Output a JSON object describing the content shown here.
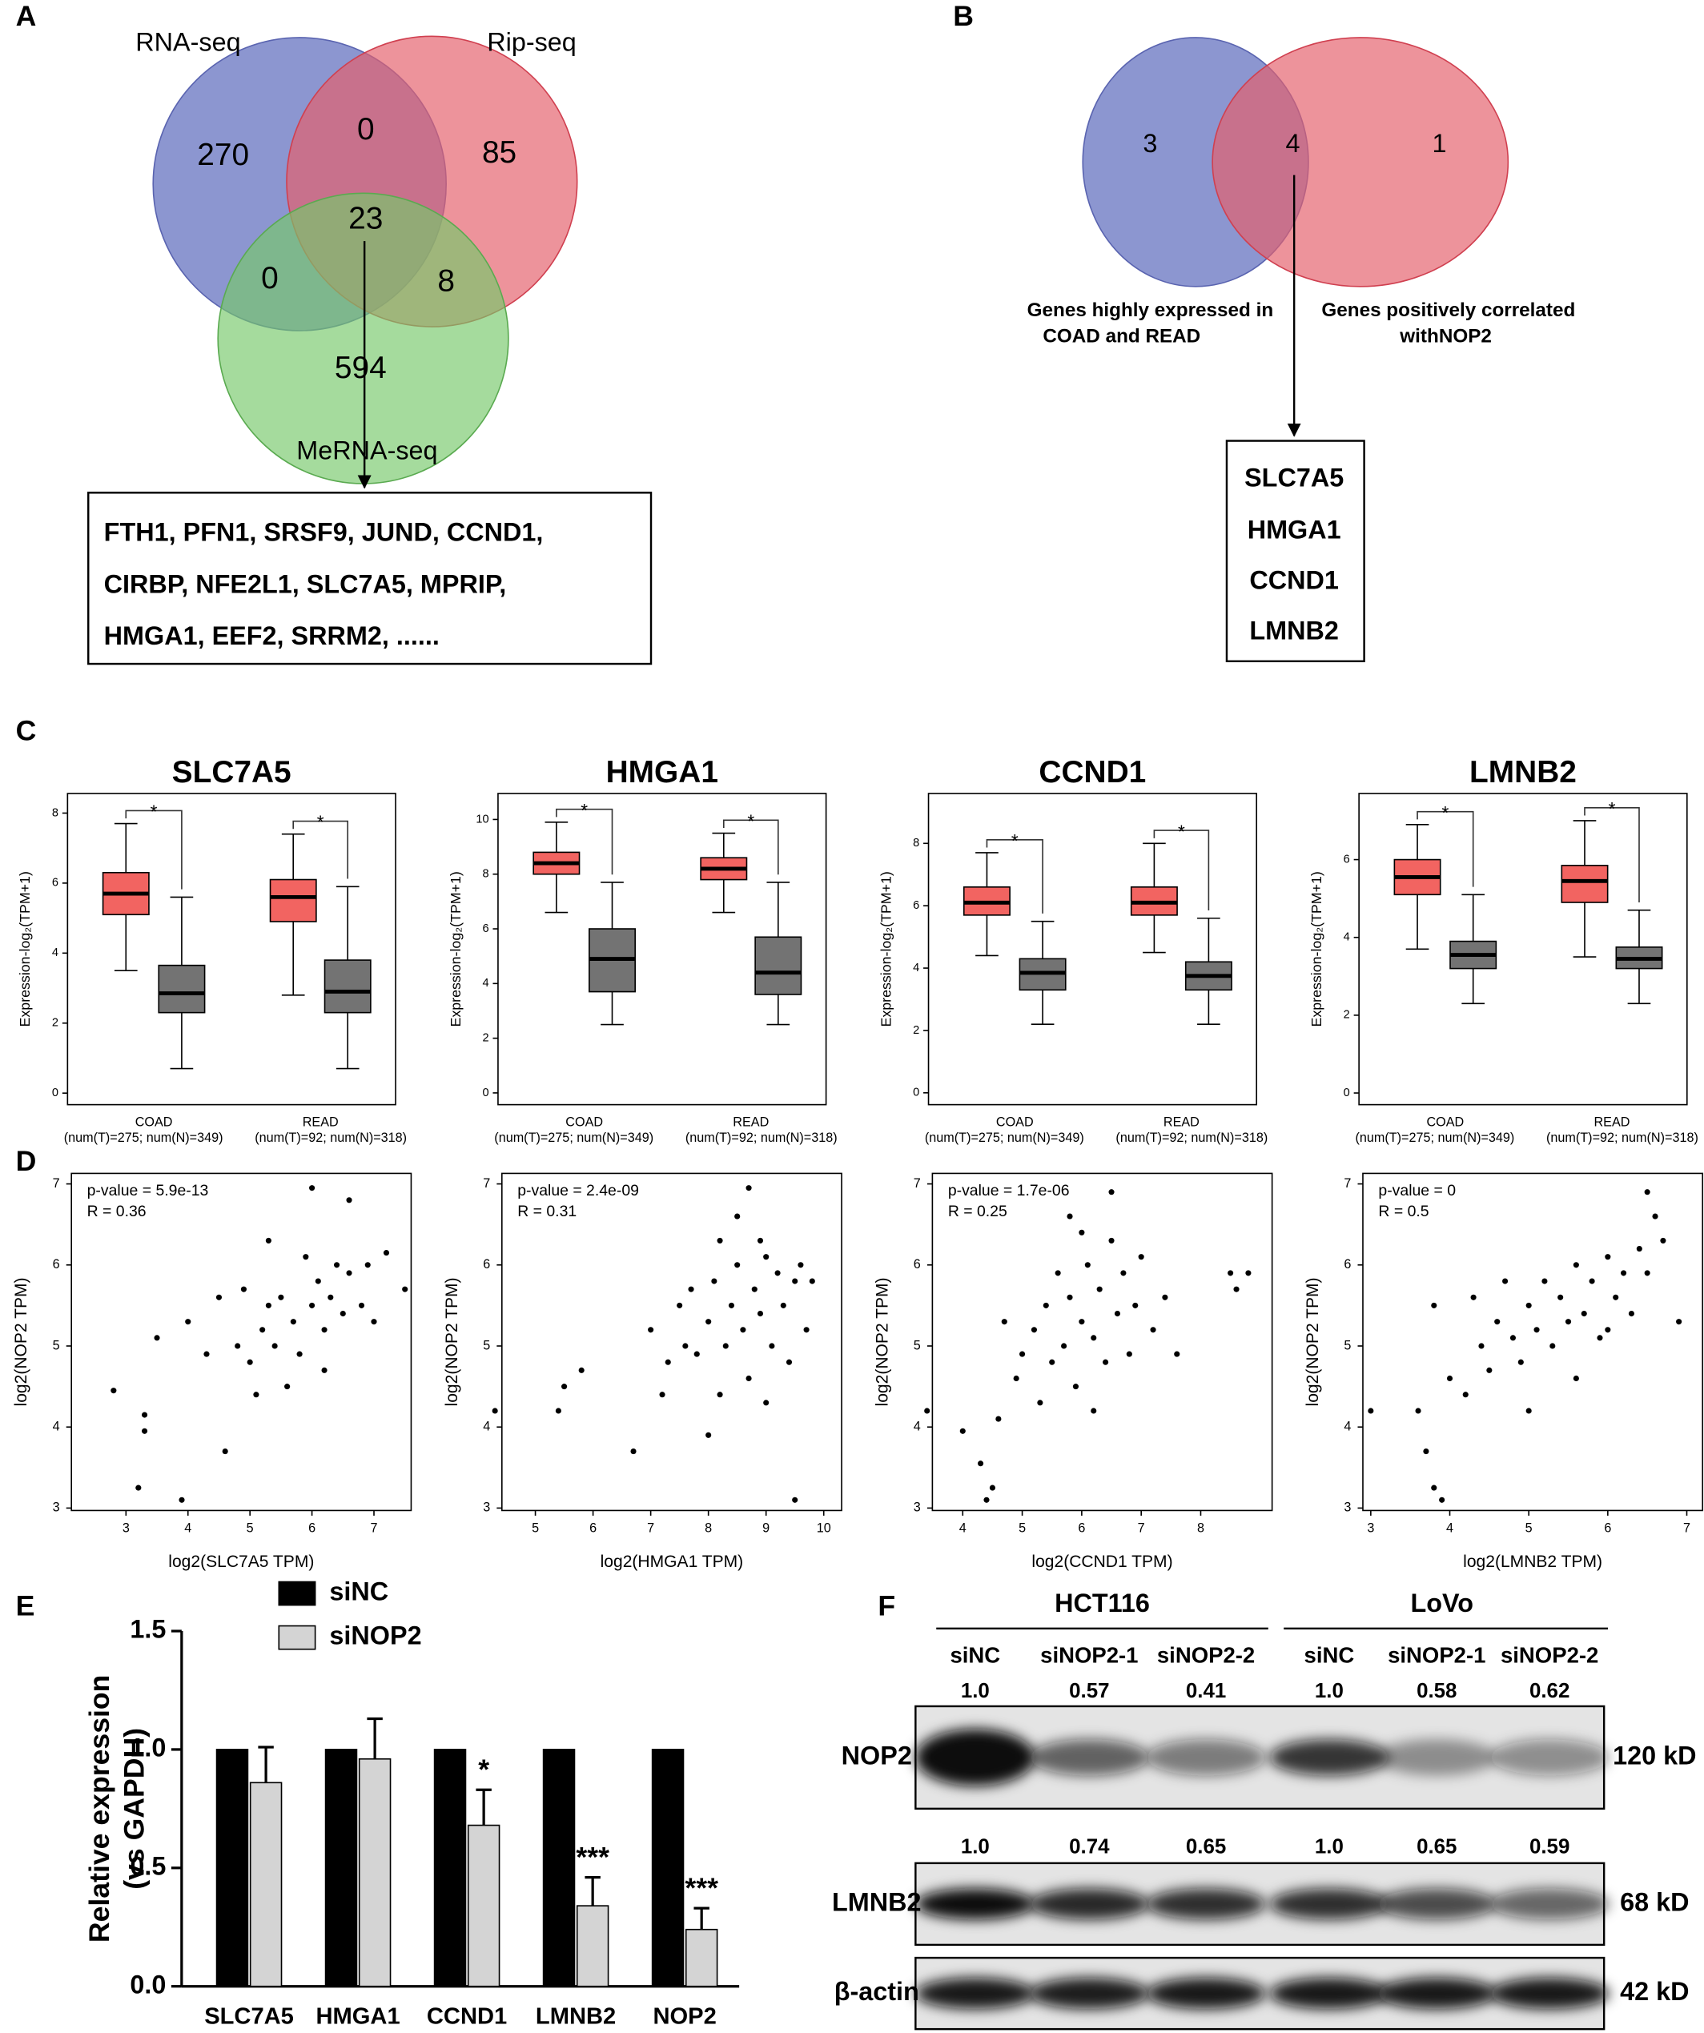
{
  "panel_labels": [
    "A",
    "B",
    "C",
    "D",
    "E",
    "F"
  ],
  "venn_a": {
    "sets": [
      "RNA-seq",
      "Rip-seq",
      "MeRNA-seq"
    ],
    "regions": [
      270,
      0,
      85,
      23,
      0,
      8,
      594
    ],
    "genes": [
      "FTH1, PFN1, SRSF9, JUND, CCND1,",
      "CIRBP, NFE2L1, SLC7A5, MPRIP,",
      "HMGA1, EEF2, SRRM2, ......"
    ]
  },
  "venn_b": {
    "regions": [
      3,
      4,
      1
    ],
    "set_labels": [
      [
        "Genes highly expressed in",
        "COAD and READ"
      ],
      [
        "Genes positively correlated",
        "withNOP2"
      ]
    ],
    "genes": [
      "SLC7A5",
      "HMGA1",
      "CCND1",
      "LMNB2"
    ]
  },
  "chart_data": [
    {
      "type": "box",
      "title": "SLC7A5",
      "y_label": "Expression-log₂(TPM+1)",
      "categories": [
        "COAD",
        "READ"
      ],
      "category_notes": [
        "(num(T)=275; num(N)=349)",
        "(num(T)=92; num(N)=318)"
      ],
      "ylim": [
        -0.33,
        8.56
      ],
      "yticks": [
        0,
        2,
        4,
        6,
        8
      ],
      "annotation": "*",
      "annotation_color": "#e31a1c",
      "series": [
        {
          "color": "#f26461",
          "boxes": [
            {
              "whislo": 3.5,
              "q1": 5.1,
              "median": 5.7,
              "q3": 6.3,
              "whishi": 7.7
            },
            {
              "whislo": 2.8,
              "q1": 4.9,
              "median": 5.6,
              "q3": 6.1,
              "whishi": 7.4
            }
          ]
        },
        {
          "color": "#737373",
          "boxes": [
            {
              "whislo": 0.7,
              "q1": 2.3,
              "median": 2.85,
              "q3": 3.65,
              "whishi": 5.6
            },
            {
              "whislo": 0.7,
              "q1": 2.3,
              "median": 2.9,
              "q3": 3.8,
              "whishi": 5.9
            }
          ]
        }
      ]
    },
    {
      "type": "box",
      "title": "HMGA1",
      "y_label": "Expression-log₂(TPM+1)",
      "categories": [
        "COAD",
        "READ"
      ],
      "category_notes": [
        "(num(T)=275; num(N)=349)",
        "(num(T)=92; num(N)=318)"
      ],
      "ylim": [
        -0.43,
        10.95
      ],
      "yticks": [
        0,
        2,
        4,
        6,
        8,
        10
      ],
      "annotation": "*",
      "annotation_color": "#e31a1c",
      "series": [
        {
          "color": "#f26461",
          "boxes": [
            {
              "whislo": 6.6,
              "q1": 8.0,
              "median": 8.4,
              "q3": 8.8,
              "whishi": 9.9
            },
            {
              "whislo": 6.6,
              "q1": 7.8,
              "median": 8.2,
              "q3": 8.6,
              "whishi": 9.5
            }
          ]
        },
        {
          "color": "#737373",
          "boxes": [
            {
              "whislo": 2.5,
              "q1": 3.7,
              "median": 4.9,
              "q3": 6.0,
              "whishi": 7.7
            },
            {
              "whislo": 2.5,
              "q1": 3.6,
              "median": 4.4,
              "q3": 5.7,
              "whishi": 7.7
            }
          ]
        }
      ]
    },
    {
      "type": "box",
      "title": "CCND1",
      "y_label": "Expression-log₂(TPM+1)",
      "categories": [
        "COAD",
        "READ"
      ],
      "category_notes": [
        "(num(T)=275; num(N)=349)",
        "(num(T)=92; num(N)=318)"
      ],
      "ylim": [
        -0.38,
        9.6
      ],
      "yticks": [
        0,
        2,
        4,
        6,
        8
      ],
      "annotation": "*",
      "annotation_color": "#e31a1c",
      "series": [
        {
          "color": "#f26461",
          "boxes": [
            {
              "whislo": 4.4,
              "q1": 5.7,
              "median": 6.1,
              "q3": 6.6,
              "whishi": 7.7
            },
            {
              "whislo": 4.5,
              "q1": 5.7,
              "median": 6.1,
              "q3": 6.6,
              "whishi": 8.0
            }
          ]
        },
        {
          "color": "#737373",
          "boxes": [
            {
              "whislo": 2.2,
              "q1": 3.3,
              "median": 3.85,
              "q3": 4.3,
              "whishi": 5.5
            },
            {
              "whislo": 2.2,
              "q1": 3.3,
              "median": 3.75,
              "q3": 4.2,
              "whishi": 5.6
            }
          ]
        }
      ]
    },
    {
      "type": "box",
      "title": "LMNB2",
      "y_label": "Expression-log₂(TPM+1)",
      "categories": [
        "COAD",
        "READ"
      ],
      "category_notes": [
        "(num(T)=275; num(N)=349)",
        "(num(T)=92; num(N)=318)"
      ],
      "ylim": [
        -0.3,
        7.7
      ],
      "yticks": [
        0,
        2,
        4,
        6
      ],
      "annotation": "*",
      "annotation_color": "#e31a1c",
      "series": [
        {
          "color": "#f26461",
          "boxes": [
            {
              "whislo": 3.7,
              "q1": 5.1,
              "median": 5.55,
              "q3": 6.0,
              "whishi": 6.9
            },
            {
              "whislo": 3.5,
              "q1": 4.9,
              "median": 5.45,
              "q3": 5.85,
              "whishi": 7.0
            }
          ]
        },
        {
          "color": "#737373",
          "boxes": [
            {
              "whislo": 2.3,
              "q1": 3.2,
              "median": 3.55,
              "q3": 3.9,
              "whishi": 5.1
            },
            {
              "whislo": 2.3,
              "q1": 3.2,
              "median": 3.45,
              "q3": 3.75,
              "whishi": 4.7
            }
          ]
        }
      ]
    },
    {
      "type": "scatter",
      "annotations": [
        "p-value = 5.9e-13",
        "R = 0.36"
      ],
      "x_label": "log2(SLC7A5 TPM)",
      "y_label": "log2(NOP2 TPM)",
      "color": "#000000",
      "xlim": [
        2.12,
        7.6
      ],
      "xticks": [
        3,
        4,
        5,
        6,
        7
      ],
      "ylim": [
        2.97,
        7.13
      ],
      "yticks": [
        3,
        4,
        5,
        6,
        7
      ],
      "x": [
        2.8,
        3.2,
        3.9,
        3.3,
        3.3,
        4.6,
        6.0,
        6.6,
        5.3,
        7.5,
        7.2,
        3.5,
        4.0,
        4.5,
        4.8,
        5.0,
        5.2,
        5.4,
        5.5,
        5.7,
        5.8,
        6.0,
        6.1,
        6.2,
        6.3,
        6.4,
        6.5,
        6.6,
        6.8,
        7.0,
        5.6,
        5.1,
        4.3,
        6.9,
        5.9,
        4.9,
        6.2,
        5.3
      ],
      "y": [
        4.45,
        3.25,
        3.1,
        3.95,
        4.15,
        3.7,
        6.95,
        6.8,
        6.3,
        5.7,
        6.15,
        5.1,
        5.3,
        5.6,
        5.0,
        4.8,
        5.2,
        5.0,
        5.6,
        5.3,
        4.9,
        5.5,
        5.8,
        5.2,
        5.6,
        6.0,
        5.4,
        5.9,
        5.5,
        5.3,
        4.5,
        4.4,
        4.9,
        6.0,
        6.1,
        5.7,
        4.7,
        5.5
      ]
    },
    {
      "type": "scatter",
      "annotations": [
        "p-value = 2.4e-09",
        "R = 0.31"
      ],
      "x_label": "log2(HMGA1 TPM)",
      "y_label": "log2(NOP2 TPM)",
      "color": "#000000",
      "xlim": [
        4.42,
        10.31
      ],
      "xticks": [
        5,
        6,
        7,
        8,
        9,
        10
      ],
      "ylim": [
        2.97,
        7.13
      ],
      "yticks": [
        3,
        4,
        5,
        6,
        7
      ],
      "x": [
        4.3,
        5.4,
        5.5,
        5.8,
        6.7,
        7.3,
        7.0,
        7.5,
        7.8,
        8.0,
        8.1,
        8.3,
        8.4,
        8.5,
        8.6,
        8.7,
        8.8,
        8.9,
        9.0,
        9.1,
        9.2,
        9.3,
        9.5,
        9.6,
        9.8,
        8.7,
        8.2,
        7.7,
        8.0,
        9.4,
        9.5,
        7.2,
        8.5,
        9.0,
        7.6,
        8.9,
        8.2,
        9.7
      ],
      "y": [
        4.2,
        4.2,
        4.5,
        4.7,
        3.7,
        4.8,
        5.2,
        5.5,
        4.9,
        5.3,
        5.8,
        5.0,
        5.5,
        6.0,
        5.2,
        4.6,
        5.7,
        5.4,
        6.1,
        5.0,
        5.9,
        5.5,
        5.8,
        6.0,
        5.8,
        6.95,
        4.4,
        5.7,
        3.9,
        4.8,
        3.1,
        4.4,
        6.6,
        4.3,
        5.0,
        6.3,
        6.3,
        5.2
      ]
    },
    {
      "type": "scatter",
      "annotations": [
        "p-value = 1.7e-06",
        "R = 0.25"
      ],
      "x_label": "log2(CCND1 TPM)",
      "y_label": "log2(NOP2 TPM)",
      "color": "#000000",
      "xlim": [
        3.49,
        9.2
      ],
      "xticks": [
        4,
        5,
        6,
        7,
        8
      ],
      "ylim": [
        2.97,
        7.13
      ],
      "yticks": [
        3,
        4,
        5,
        6,
        7
      ],
      "x": [
        3.4,
        4.0,
        4.3,
        4.5,
        4.4,
        4.6,
        4.9,
        5.0,
        5.2,
        5.4,
        5.5,
        5.7,
        5.8,
        5.9,
        6.0,
        6.1,
        6.2,
        6.3,
        6.4,
        6.5,
        6.6,
        6.7,
        6.8,
        6.9,
        7.0,
        7.2,
        7.4,
        8.5,
        8.8,
        8.6,
        6.5,
        5.8,
        4.7,
        5.3,
        6.2,
        7.6,
        6.0,
        5.6
      ],
      "y": [
        4.2,
        3.95,
        3.55,
        3.25,
        3.1,
        4.1,
        4.6,
        4.9,
        5.2,
        5.5,
        4.8,
        5.0,
        5.6,
        4.5,
        5.3,
        6.0,
        5.1,
        5.7,
        4.8,
        6.3,
        5.4,
        5.9,
        4.9,
        5.5,
        6.1,
        5.2,
        5.6,
        5.9,
        5.9,
        5.7,
        6.9,
        6.6,
        5.3,
        4.3,
        4.2,
        4.9,
        6.4,
        5.9
      ]
    },
    {
      "type": "scatter",
      "annotations": [
        "p-value = 0",
        "R = 0.5"
      ],
      "x_label": "log2(LMNB2 TPM)",
      "y_label": "log2(NOP2 TPM)",
      "color": "#000000",
      "xlim": [
        2.9,
        7.2
      ],
      "xticks": [
        3,
        4,
        5,
        6,
        7
      ],
      "ylim": [
        2.97,
        7.13
      ],
      "yticks": [
        3,
        4,
        5,
        6,
        7
      ],
      "x": [
        3.0,
        3.6,
        3.8,
        3.9,
        3.7,
        3.8,
        4.0,
        4.2,
        4.4,
        4.5,
        4.6,
        4.8,
        4.9,
        5.0,
        5.1,
        5.2,
        5.3,
        5.4,
        5.5,
        5.6,
        5.7,
        5.8,
        5.9,
        6.0,
        6.1,
        6.2,
        6.3,
        6.4,
        6.5,
        6.5,
        6.6,
        6.7,
        6.9,
        5.0,
        4.3,
        5.6,
        6.0,
        4.7
      ],
      "y": [
        4.2,
        4.2,
        3.25,
        3.1,
        3.7,
        5.5,
        4.6,
        4.4,
        5.0,
        4.7,
        5.3,
        5.1,
        4.8,
        5.5,
        5.2,
        5.8,
        5.0,
        5.6,
        5.3,
        6.0,
        5.4,
        5.8,
        5.1,
        6.1,
        5.6,
        5.9,
        5.4,
        6.2,
        5.9,
        6.9,
        6.6,
        6.3,
        5.3,
        4.2,
        5.6,
        4.6,
        5.2,
        5.8
      ]
    },
    {
      "type": "bar",
      "y_label": [
        "Relative expression",
        "(vs GAPDH)"
      ],
      "categories": [
        "SLC7A5",
        "HMGA1",
        "CCND1",
        "LMNB2",
        "NOP2"
      ],
      "ylim": [
        0,
        1.5
      ],
      "yticks": [
        {
          "value": 0,
          "label": "0.0"
        },
        0.5,
        {
          "value": 1,
          "label": "1.0"
        },
        1.5
      ],
      "series": [
        {
          "name": "siNC",
          "color": "#000000",
          "values": [
            1,
            1,
            1,
            1,
            1
          ]
        },
        {
          "name": "siNOP2",
          "color": "#d4d4d4",
          "values": [
            0.86,
            0.96,
            0.68,
            0.34,
            0.24
          ],
          "errors": [
            0.15,
            0.17,
            0.15,
            0.12,
            0.09
          ]
        }
      ],
      "value_annotations": [
        null,
        null,
        "*",
        "***",
        "***"
      ]
    }
  ],
  "blot": {
    "groups": [
      "HCT116",
      "LoVo"
    ],
    "lanes": [
      "siNC",
      "siNOP2-1",
      "siNOP2-2",
      "siNC",
      "siNOP2-1",
      "siNOP2-2"
    ],
    "rows": [
      {
        "protein": "NOP2",
        "size": "120 kD",
        "ratios": [
          "1.0",
          "0.57",
          "0.41",
          "1.0",
          "0.58",
          "0.62"
        ]
      },
      {
        "protein": "LMNB2",
        "size": "68 kD",
        "ratios": [
          "1.0",
          "0.74",
          "0.65",
          "1.0",
          "0.65",
          "0.59"
        ]
      },
      {
        "protein": "β-actin",
        "size": "42 kD"
      }
    ]
  }
}
